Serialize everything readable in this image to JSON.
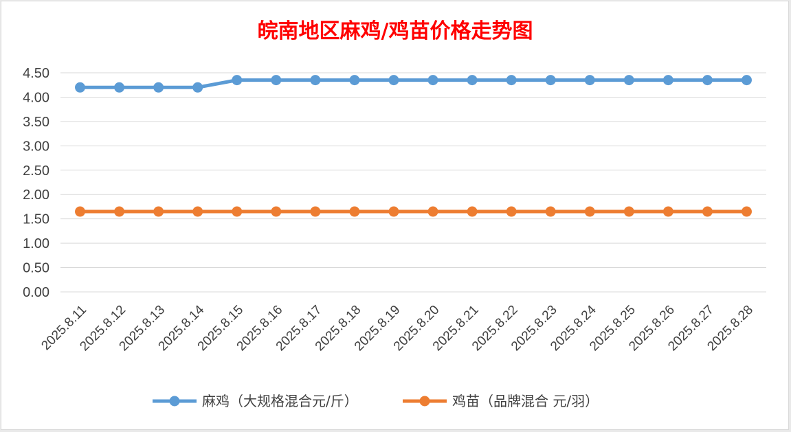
{
  "chart_data": {
    "type": "line",
    "title": "皖南地区麻鸡/鸡苗价格走势图",
    "categories": [
      "2025.8.11",
      "2025.8.12",
      "2025.8.13",
      "2025.8.14",
      "2025.8.15",
      "2025.8.16",
      "2025.8.17",
      "2025.8.18",
      "2025.8.19",
      "2025.8.20",
      "2025.8.21",
      "2025.8.22",
      "2025.8.23",
      "2025.8.24",
      "2025.8.25",
      "2025.8.26",
      "2025.8.27",
      "2025.8.28"
    ],
    "ylim": [
      0,
      4.5
    ],
    "yticks": [
      "0.00",
      "0.50",
      "1.00",
      "1.50",
      "2.00",
      "2.50",
      "3.00",
      "3.50",
      "4.00",
      "4.50"
    ],
    "grid": true,
    "legend": "bottom",
    "series": [
      {
        "name": "麻鸡（大规格混合元/斤）",
        "color": "#5b9bd5",
        "values": [
          4.2,
          4.2,
          4.2,
          4.2,
          4.35,
          4.35,
          4.35,
          4.35,
          4.35,
          4.35,
          4.35,
          4.35,
          4.35,
          4.35,
          4.35,
          4.35,
          4.35,
          4.35
        ]
      },
      {
        "name": "鸡苗（品牌混合 元/羽）",
        "color": "#ed7d31",
        "values": [
          1.65,
          1.65,
          1.65,
          1.65,
          1.65,
          1.65,
          1.65,
          1.65,
          1.65,
          1.65,
          1.65,
          1.65,
          1.65,
          1.65,
          1.65,
          1.65,
          1.65,
          1.65
        ]
      }
    ]
  }
}
